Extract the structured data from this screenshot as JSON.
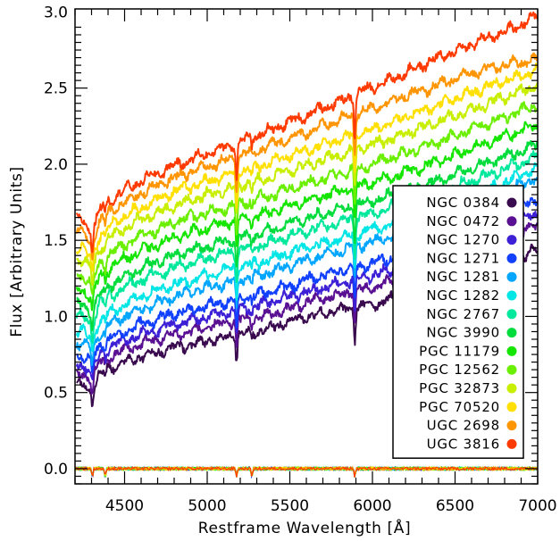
{
  "chart_data": {
    "type": "line",
    "xlabel": "Restframe Wavelength [Å]",
    "ylabel": "Flux [Arbitrary Units]",
    "xlim": [
      4200,
      7000
    ],
    "ylim": [
      -0.1,
      3.02
    ],
    "xticks": [
      "4500",
      "5000",
      "5500",
      "6000",
      "6500",
      "7000"
    ],
    "yticks": [
      "0.0",
      "0.5",
      "1.0",
      "1.5",
      "2.0",
      "2.5",
      "3.0"
    ],
    "legend_position": "right",
    "grid": false,
    "x": [
      4250,
      4300,
      4350,
      4400,
      4500,
      4600,
      4700,
      4800,
      4900,
      5000,
      5100,
      5200,
      5300,
      5400,
      5500,
      5600,
      5700,
      5800,
      5900,
      6000,
      6100,
      6200,
      6300,
      6400,
      6500,
      6600,
      6700,
      6800,
      6900,
      7000
    ],
    "series": [
      {
        "name": "NGC 0384",
        "color": "#3a0a4f",
        "values": [
          0.55,
          0.52,
          0.62,
          0.66,
          0.7,
          0.74,
          0.76,
          0.8,
          0.81,
          0.84,
          0.86,
          0.89,
          0.9,
          0.93,
          0.97,
          1.0,
          1.02,
          1.04,
          1.06,
          1.08,
          1.11,
          1.14,
          1.16,
          1.19,
          1.22,
          1.26,
          1.3,
          1.34,
          1.39,
          1.44
        ]
      },
      {
        "name": "NGC 0472",
        "color": "#5a1092",
        "values": [
          0.62,
          0.58,
          0.69,
          0.73,
          0.78,
          0.82,
          0.85,
          0.88,
          0.9,
          0.93,
          0.95,
          0.98,
          0.99,
          1.02,
          1.05,
          1.09,
          1.12,
          1.14,
          1.17,
          1.19,
          1.22,
          1.25,
          1.28,
          1.32,
          1.36,
          1.4,
          1.45,
          1.5,
          1.55,
          1.6
        ]
      },
      {
        "name": "NGC 1270",
        "color": "#3d1fd6",
        "values": [
          0.68,
          0.64,
          0.75,
          0.79,
          0.84,
          0.88,
          0.91,
          0.95,
          0.97,
          1.0,
          1.02,
          1.05,
          1.07,
          1.1,
          1.13,
          1.16,
          1.19,
          1.22,
          1.24,
          1.27,
          1.3,
          1.33,
          1.36,
          1.4,
          1.44,
          1.48,
          1.53,
          1.58,
          1.63,
          1.68
        ]
      },
      {
        "name": "NGC 1271",
        "color": "#1140ff",
        "values": [
          0.74,
          0.7,
          0.81,
          0.85,
          0.9,
          0.95,
          0.98,
          1.02,
          1.04,
          1.07,
          1.09,
          1.12,
          1.14,
          1.17,
          1.2,
          1.24,
          1.27,
          1.3,
          1.32,
          1.35,
          1.38,
          1.42,
          1.46,
          1.5,
          1.54,
          1.58,
          1.63,
          1.68,
          1.73,
          1.78
        ]
      },
      {
        "name": "NGC 1281",
        "color": "#00a6ff",
        "values": [
          0.82,
          0.77,
          0.89,
          0.94,
          1.0,
          1.05,
          1.09,
          1.13,
          1.16,
          1.19,
          1.21,
          1.25,
          1.27,
          1.3,
          1.33,
          1.37,
          1.4,
          1.43,
          1.46,
          1.49,
          1.52,
          1.56,
          1.6,
          1.64,
          1.68,
          1.72,
          1.77,
          1.82,
          1.87,
          1.92
        ]
      },
      {
        "name": "NGC 1282",
        "color": "#00e5e5",
        "values": [
          0.9,
          0.85,
          0.97,
          1.02,
          1.08,
          1.13,
          1.17,
          1.21,
          1.24,
          1.27,
          1.3,
          1.33,
          1.35,
          1.38,
          1.42,
          1.45,
          1.48,
          1.51,
          1.54,
          1.57,
          1.6,
          1.64,
          1.67,
          1.71,
          1.75,
          1.79,
          1.84,
          1.88,
          1.93,
          1.97
        ]
      },
      {
        "name": "NGC 2767",
        "color": "#00e89c",
        "values": [
          1.0,
          0.95,
          1.08,
          1.13,
          1.19,
          1.24,
          1.28,
          1.32,
          1.35,
          1.38,
          1.41,
          1.44,
          1.46,
          1.49,
          1.53,
          1.56,
          1.59,
          1.62,
          1.65,
          1.68,
          1.71,
          1.74,
          1.77,
          1.81,
          1.85,
          1.89,
          1.93,
          1.97,
          2.01,
          2.05
        ]
      },
      {
        "name": "NGC 3990",
        "color": "#00dc3c",
        "values": [
          1.08,
          1.02,
          1.15,
          1.2,
          1.26,
          1.32,
          1.36,
          1.4,
          1.43,
          1.46,
          1.49,
          1.52,
          1.54,
          1.57,
          1.61,
          1.64,
          1.67,
          1.7,
          1.73,
          1.76,
          1.79,
          1.82,
          1.86,
          1.89,
          1.93,
          1.97,
          2.01,
          2.05,
          2.09,
          2.13
        ]
      },
      {
        "name": "PGC 11179",
        "color": "#14e600",
        "values": [
          1.18,
          1.12,
          1.26,
          1.31,
          1.38,
          1.43,
          1.47,
          1.52,
          1.55,
          1.58,
          1.61,
          1.64,
          1.66,
          1.69,
          1.73,
          1.76,
          1.79,
          1.82,
          1.85,
          1.88,
          1.91,
          1.95,
          1.98,
          2.02,
          2.06,
          2.1,
          2.14,
          2.18,
          2.22,
          2.26
        ]
      },
      {
        "name": "PGC 12562",
        "color": "#6bef00",
        "values": [
          1.27,
          1.2,
          1.35,
          1.4,
          1.47,
          1.53,
          1.57,
          1.62,
          1.65,
          1.68,
          1.71,
          1.74,
          1.77,
          1.8,
          1.84,
          1.87,
          1.9,
          1.94,
          1.97,
          2.0,
          2.04,
          2.07,
          2.11,
          2.15,
          2.19,
          2.23,
          2.27,
          2.31,
          2.35,
          2.39
        ]
      },
      {
        "name": "PGC 32873",
        "color": "#c8ee00",
        "values": [
          1.37,
          1.3,
          1.45,
          1.51,
          1.58,
          1.64,
          1.68,
          1.73,
          1.76,
          1.8,
          1.83,
          1.86,
          1.89,
          1.92,
          1.96,
          1.99,
          2.03,
          2.06,
          2.09,
          2.13,
          2.16,
          2.2,
          2.24,
          2.28,
          2.32,
          2.36,
          2.4,
          2.44,
          2.48,
          2.52
        ]
      },
      {
        "name": "PGC 70520",
        "color": "#ffe000",
        "values": [
          1.45,
          1.38,
          1.53,
          1.59,
          1.66,
          1.72,
          1.77,
          1.82,
          1.85,
          1.89,
          1.92,
          1.95,
          1.98,
          2.02,
          2.06,
          2.09,
          2.13,
          2.16,
          2.2,
          2.23,
          2.27,
          2.31,
          2.35,
          2.39,
          2.43,
          2.47,
          2.51,
          2.55,
          2.58,
          2.62
        ]
      },
      {
        "name": "UGC 2698",
        "color": "#ff9500",
        "values": [
          1.55,
          1.47,
          1.62,
          1.68,
          1.75,
          1.81,
          1.86,
          1.91,
          1.95,
          1.99,
          2.02,
          2.06,
          2.09,
          2.13,
          2.17,
          2.21,
          2.25,
          2.29,
          2.33,
          2.37,
          2.41,
          2.45,
          2.48,
          2.52,
          2.56,
          2.6,
          2.63,
          2.65,
          2.67,
          2.68
        ]
      },
      {
        "name": "UGC 3816",
        "color": "#ff3a00",
        "values": [
          1.63,
          1.55,
          1.7,
          1.76,
          1.83,
          1.89,
          1.94,
          1.99,
          2.03,
          2.07,
          2.11,
          2.15,
          2.19,
          2.23,
          2.28,
          2.32,
          2.37,
          2.41,
          2.46,
          2.51,
          2.55,
          2.6,
          2.65,
          2.7,
          2.74,
          2.79,
          2.83,
          2.87,
          2.92,
          2.98
        ]
      }
    ],
    "absorption_lines": [
      {
        "x": 4305,
        "depth": 0.12
      },
      {
        "x": 5178,
        "depth": 0.22
      },
      {
        "x": 5893,
        "depth": 0.25
      },
      {
        "x": 5270,
        "depth": 0.05
      },
      {
        "x": 4383,
        "depth": 0.06
      }
    ]
  }
}
